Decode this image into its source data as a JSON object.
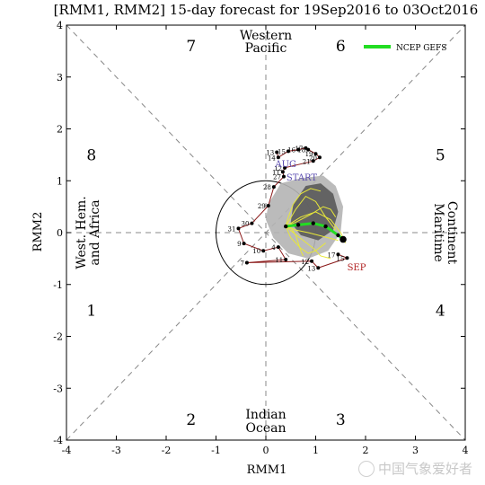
{
  "chart_data": {
    "type": "scatter",
    "title": "[RMM1, RMM2] 15-day forecast for 19Sep2016 to 03Oct2016",
    "xlabel": "RMM1",
    "ylabel": "RMM2",
    "xlim": [
      -4,
      4
    ],
    "ylim": [
      -4,
      4
    ],
    "ticks": [
      -4,
      -3,
      -2,
      -1,
      0,
      1,
      2,
      3,
      4
    ],
    "phase_numbers": [
      {
        "label": "1",
        "x": -3.5,
        "y": -1.5
      },
      {
        "label": "2",
        "x": -1.5,
        "y": -3.6
      },
      {
        "label": "3",
        "x": 1.5,
        "y": -3.6
      },
      {
        "label": "4",
        "x": 3.5,
        "y": -1.5
      },
      {
        "label": "5",
        "x": 3.5,
        "y": 1.5
      },
      {
        "label": "6",
        "x": 1.5,
        "y": 3.6
      },
      {
        "label": "7",
        "x": -1.5,
        "y": 3.6
      },
      {
        "label": "8",
        "x": -3.5,
        "y": 1.5
      }
    ],
    "region_labels": {
      "top": [
        "Western",
        "Pacific"
      ],
      "bottom": [
        "Indian",
        "Ocean"
      ],
      "left": [
        "West. Hem.",
        "and Africa"
      ],
      "right": [
        "Maritime",
        "Continent"
      ]
    },
    "legend": {
      "label": "NCEP GEFS",
      "color": "#22dd22"
    },
    "annotations": [
      {
        "text": "AUG",
        "x": 0.4,
        "y": 1.33,
        "color": "#5a4bb0"
      },
      {
        "text": "START",
        "x": 0.72,
        "y": 1.07,
        "color": "#5a4bb0"
      },
      {
        "text": "SEP",
        "x": 1.82,
        "y": -0.66,
        "color": "#b02020"
      }
    ],
    "observed": {
      "color": "#8b1a1a",
      "points": [
        {
          "label": "13",
          "x": 0.22,
          "y": 1.55
        },
        {
          "label": "14",
          "x": 0.25,
          "y": 1.45
        },
        {
          "label": "15",
          "x": 0.45,
          "y": 1.57
        },
        {
          "label": "16",
          "x": 0.65,
          "y": 1.6
        },
        {
          "label": "17",
          "x": 0.8,
          "y": 1.63
        },
        {
          "label": "18",
          "x": 0.85,
          "y": 1.6
        },
        {
          "label": "19",
          "x": 1.0,
          "y": 1.52
        },
        {
          "label": "20",
          "x": 1.08,
          "y": 1.45
        },
        {
          "label": "21",
          "x": 0.95,
          "y": 1.38
        },
        {
          "label": "12",
          "x": 0.38,
          "y": 1.25
        },
        {
          "label": "11",
          "x": 0.34,
          "y": 1.17
        },
        {
          "label": "27",
          "x": 0.36,
          "y": 1.08
        },
        {
          "label": "28",
          "x": 0.16,
          "y": 0.88
        },
        {
          "label": "29",
          "x": 0.05,
          "y": 0.52
        },
        {
          "label": "30",
          "x": -0.28,
          "y": 0.18
        },
        {
          "label": "31",
          "x": -0.55,
          "y": 0.08
        },
        {
          "label": "9",
          "x": -0.44,
          "y": -0.21
        },
        {
          "label": "10",
          "x": -0.05,
          "y": -0.35
        },
        {
          "label": "4",
          "x": 0.25,
          "y": -0.28
        },
        {
          "label": "11",
          "x": 0.4,
          "y": -0.52
        },
        {
          "label": "7",
          "x": -0.38,
          "y": -0.58
        },
        {
          "label": "12",
          "x": 0.92,
          "y": -0.55
        },
        {
          "label": "13",
          "x": 1.05,
          "y": -0.68
        },
        {
          "label": "15",
          "x": 1.63,
          "y": -0.49
        },
        {
          "label": "17",
          "x": 1.45,
          "y": -0.42
        }
      ]
    },
    "ensemble_mean": {
      "name": "NCEP GEFS",
      "color": "#22dd22",
      "x": [
        0.4,
        0.65,
        0.95,
        1.2,
        1.45,
        1.55
      ],
      "y": [
        0.12,
        0.15,
        0.18,
        0.12,
        -0.05,
        -0.13
      ]
    },
    "ensemble_members": [
      {
        "x": [
          0.4,
          0.6,
          0.8,
          1.0,
          1.2,
          1.4
        ],
        "y": [
          0.12,
          0.45,
          0.7,
          0.6,
          0.3,
          0.05
        ]
      },
      {
        "x": [
          0.4,
          0.5,
          0.7,
          0.85,
          1.0,
          1.2
        ],
        "y": [
          0.12,
          -0.1,
          -0.3,
          -0.4,
          -0.35,
          -0.2
        ]
      },
      {
        "x": [
          0.4,
          0.7,
          1.0,
          1.3,
          1.5,
          1.6
        ],
        "y": [
          0.12,
          0.3,
          0.4,
          0.25,
          0.0,
          -0.2
        ]
      },
      {
        "x": [
          0.4,
          0.45,
          0.55,
          0.7,
          0.9,
          1.1
        ],
        "y": [
          0.12,
          0.3,
          0.55,
          0.75,
          0.85,
          0.8
        ]
      },
      {
        "x": [
          0.4,
          0.55,
          0.75,
          0.95,
          1.1,
          1.3
        ],
        "y": [
          0.12,
          0.0,
          -0.15,
          -0.3,
          -0.45,
          -0.5
        ]
      },
      {
        "x": [
          0.4,
          0.6,
          0.9,
          1.15,
          1.3,
          1.4
        ],
        "y": [
          0.12,
          0.2,
          0.35,
          0.5,
          0.45,
          0.3
        ]
      },
      {
        "x": [
          0.4,
          0.5,
          0.6,
          0.65,
          0.7,
          0.75
        ],
        "y": [
          0.12,
          0.1,
          -0.05,
          -0.2,
          -0.35,
          -0.45
        ]
      },
      {
        "x": [
          0.4,
          0.6,
          0.85,
          1.05,
          1.25,
          1.45
        ],
        "y": [
          0.12,
          0.05,
          0.0,
          -0.05,
          -0.1,
          -0.15
        ]
      }
    ],
    "shading": [
      {
        "color": "#5a5a5a",
        "outline": [
          [
            0.55,
            0.55
          ],
          [
            0.8,
            0.9
          ],
          [
            1.1,
            0.95
          ],
          [
            1.35,
            0.75
          ],
          [
            1.45,
            0.4
          ],
          [
            1.35,
            0.05
          ],
          [
            1.05,
            -0.15
          ],
          [
            0.7,
            -0.05
          ],
          [
            0.5,
            0.2
          ]
        ]
      },
      {
        "color": "#b4b4b4",
        "outline": [
          [
            0.05,
            0.55
          ],
          [
            0.3,
            0.95
          ],
          [
            0.7,
            1.05
          ],
          [
            1.15,
            1.1
          ],
          [
            1.4,
            0.9
          ],
          [
            1.55,
            0.5
          ],
          [
            1.5,
            0.0
          ],
          [
            1.25,
            -0.35
          ],
          [
            0.85,
            -0.5
          ],
          [
            0.45,
            -0.4
          ],
          [
            0.15,
            -0.1
          ],
          [
            0.0,
            0.25
          ]
        ]
      }
    ]
  }
}
